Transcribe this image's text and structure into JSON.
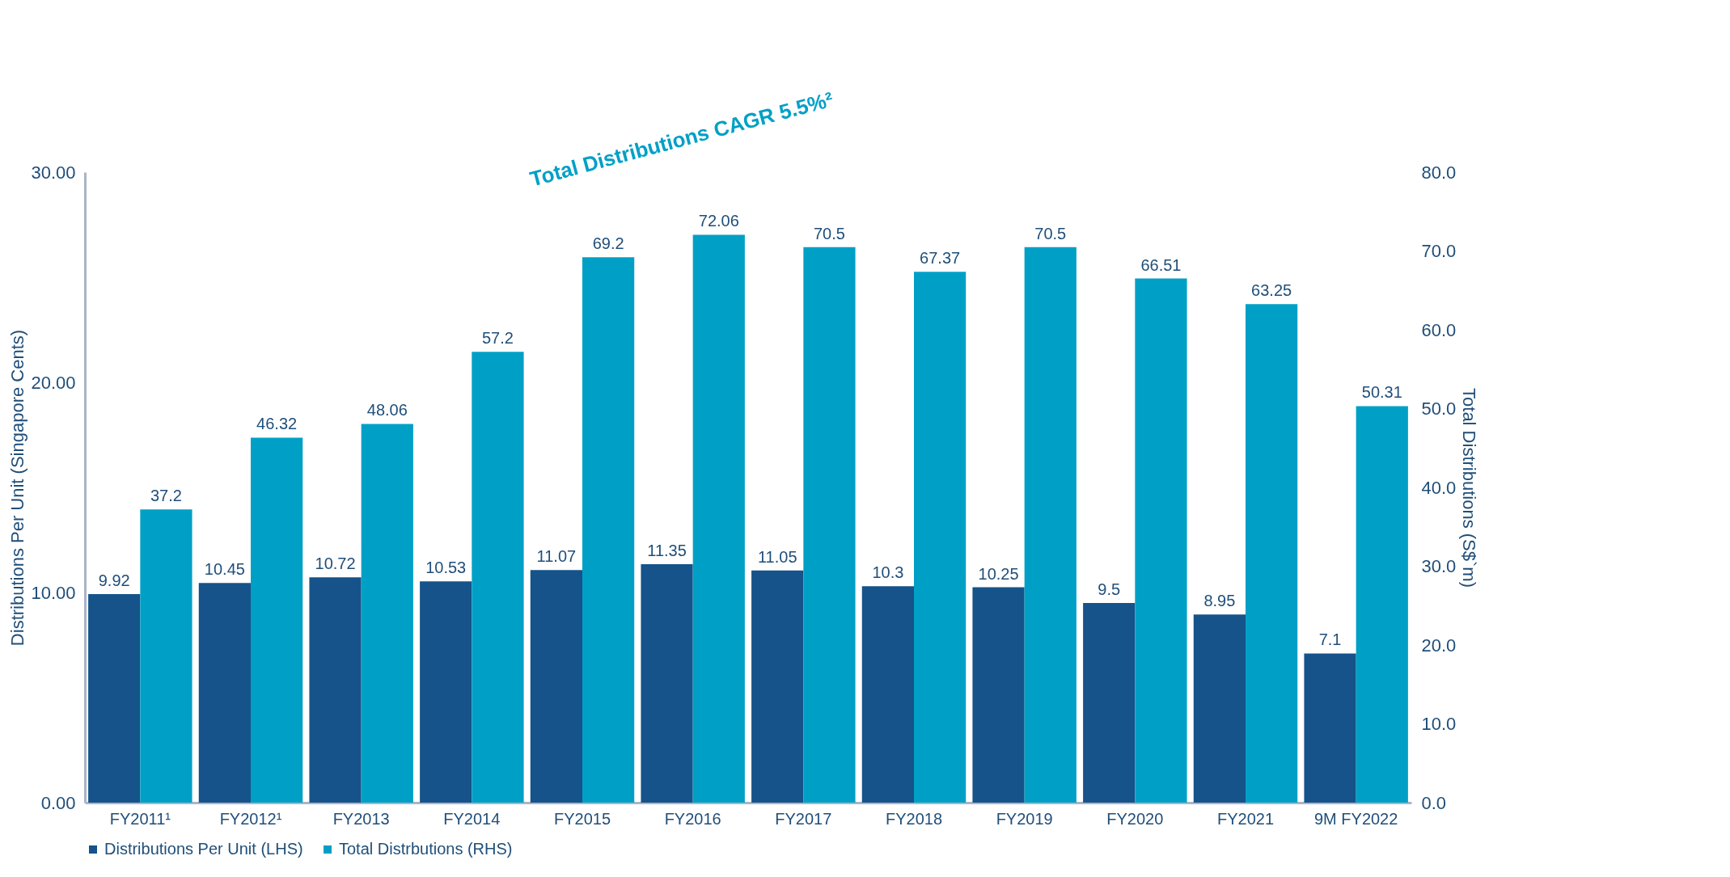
{
  "chart_data": {
    "type": "bar",
    "categories": [
      "FY2011¹",
      "FY2012¹",
      "FY2013",
      "FY2014",
      "FY2015",
      "FY2016",
      "FY2017",
      "FY2018",
      "FY2019",
      "FY2020",
      "FY2021",
      "9M FY2022"
    ],
    "series": [
      {
        "name": "Distributions Per Unit (LHS)",
        "color": "#15538a",
        "values": [
          9.92,
          10.45,
          10.72,
          10.53,
          11.07,
          11.35,
          11.05,
          10.3,
          10.25,
          9.5,
          8.95,
          7.1
        ]
      },
      {
        "name": "Total Distrbutions (RHS)",
        "color": "#00a0c6",
        "axis": "y2",
        "values": [
          37.2,
          46.32,
          48.06,
          57.2,
          69.2,
          72.06,
          70.5,
          67.37,
          70.5,
          66.51,
          63.25,
          50.31
        ]
      }
    ],
    "ylabel": "Distributions Per Unit  (Singapore Cents)",
    "y2label": "Total Distributions (S$`m)",
    "ylim": [
      0,
      30
    ],
    "yticks": [
      {
        "value": 0,
        "label": "0.00"
      },
      {
        "value": 10,
        "label": "10.00"
      },
      {
        "value": 20,
        "label": "20.00"
      },
      {
        "value": 30,
        "label": "30.00"
      }
    ],
    "y2lim": [
      0,
      80
    ],
    "y2ticks": [
      {
        "value": 0,
        "label": "0.0"
      },
      {
        "value": 10,
        "label": "10.0"
      },
      {
        "value": 20,
        "label": "20.0"
      },
      {
        "value": 30,
        "label": "30.0"
      },
      {
        "value": 40,
        "label": "40.0"
      },
      {
        "value": 50,
        "label": "50.0"
      },
      {
        "value": 60,
        "label": "60.0"
      },
      {
        "value": 70,
        "label": "70.0"
      },
      {
        "value": 80,
        "label": "80.0"
      }
    ],
    "data_labels": true,
    "legend": "bottom",
    "annotations": [
      "Total Distributions CAGR 5.5%²"
    ]
  }
}
